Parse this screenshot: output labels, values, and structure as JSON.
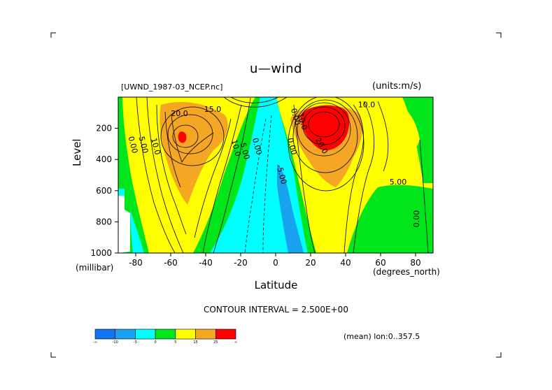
{
  "colors": {
    "c_neg_inf": "#1273f0",
    "c_neg10": "#19a2ef",
    "c_neg5": "#00ffff",
    "c_0": "#00e61b",
    "c_5": "#ffff00",
    "c_15": "#f5a623",
    "c_25": "#ff0000"
  },
  "chart_data": {
    "type": "heatmap",
    "title": "u—wind",
    "file_label": "[UWND_1987-03_NCEP.nc]",
    "units_label": "(units:m/s)",
    "xlabel": "Latitude",
    "x_unit_label": "(degrees_north)",
    "ylabel": "Level",
    "y_unit_label": "(millibar)",
    "xlim": [
      -90,
      90
    ],
    "ylim": [
      1000,
      0
    ],
    "x_ticks": [
      -80,
      -60,
      -40,
      -20,
      0,
      20,
      40,
      60,
      80
    ],
    "y_ticks": [
      200,
      400,
      600,
      800,
      1000
    ],
    "contour_interval_text": "CONTOUR INTERVAL = 2.500E+00",
    "footer_text": "(mean) lon:0..357.5",
    "colorbar": {
      "tick_labels": [
        "-∞",
        "-10",
        "-5",
        "0",
        "5",
        "15",
        "25",
        "∞"
      ],
      "colors": [
        "#1273f0",
        "#19a2ef",
        "#00ffff",
        "#00e61b",
        "#ffff00",
        "#f5a623",
        "#ff0000"
      ]
    },
    "contour_labels": [
      {
        "text": "20.0",
        "lat": -55,
        "lev": 120
      },
      {
        "text": "15.0",
        "lat": -36,
        "lev": 95
      },
      {
        "text": "10.0",
        "lat": -70,
        "lev": 320
      },
      {
        "text": "5.00",
        "lat": -77,
        "lev": 310
      },
      {
        "text": "0.00",
        "lat": -83,
        "lev": 310
      },
      {
        "text": "10.0",
        "lat": -24,
        "lev": 330
      },
      {
        "text": "5.00",
        "lat": -19,
        "lev": 350
      },
      {
        "text": "0.00",
        "lat": -12,
        "lev": 320
      },
      {
        "text": "-5.00",
        "lat": 2,
        "lev": 500
      },
      {
        "text": "0.00",
        "lat": 8,
        "lev": 320
      },
      {
        "text": "0.00",
        "lat": 10,
        "lev": 130
      },
      {
        "text": "10.0",
        "lat": 14,
        "lev": 160
      },
      {
        "text": "20.0",
        "lat": 25,
        "lev": 320
      },
      {
        "text": "10.0",
        "lat": 52,
        "lev": 65
      },
      {
        "text": "5.00",
        "lat": 70,
        "lev": 560
      },
      {
        "text": "0.00",
        "lat": 82,
        "lev": 780
      }
    ]
  }
}
